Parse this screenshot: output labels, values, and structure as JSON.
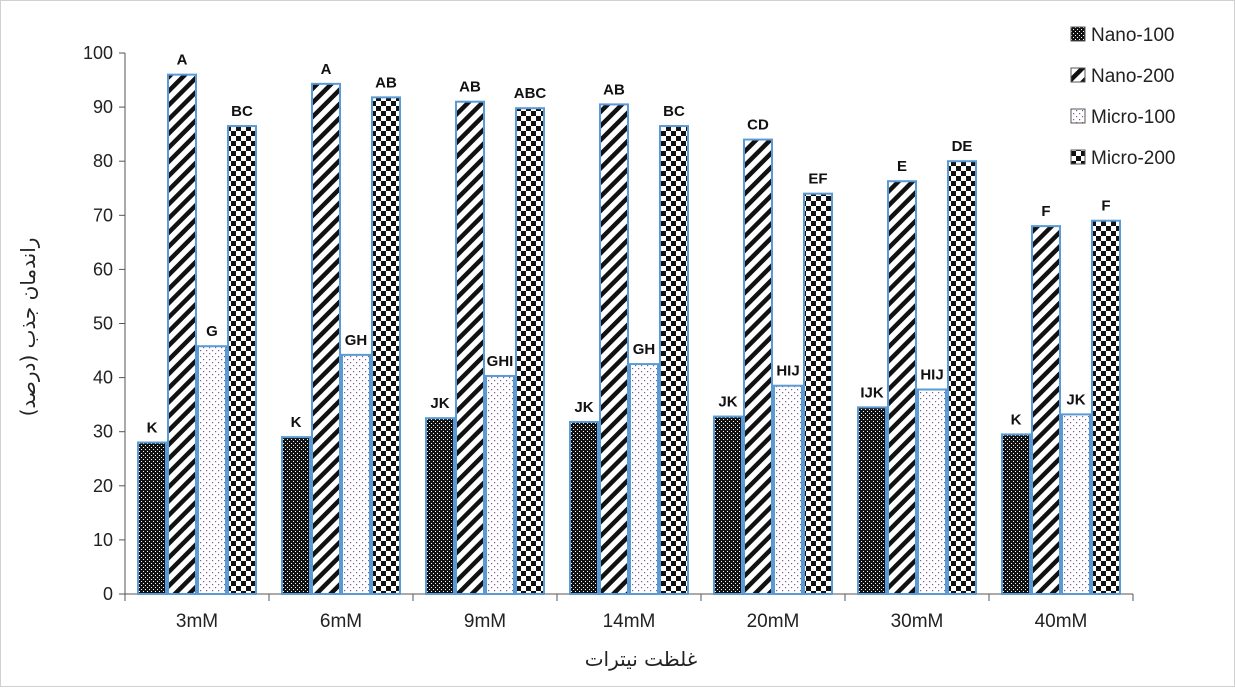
{
  "chart_data": {
    "type": "bar",
    "xlabel": "غلظت نیترات",
    "ylabel": "راندمان جذب (درصد)",
    "ylim": [
      0,
      100
    ],
    "yticks": [
      0,
      10,
      20,
      30,
      40,
      50,
      60,
      70,
      80,
      90,
      100
    ],
    "grid": false,
    "legend_position": "top-right",
    "categories": [
      "3mM",
      "6mM",
      "9mM",
      "14mM",
      "20mM",
      "30mM",
      "40mM"
    ],
    "series": [
      {
        "name": "Nano-100",
        "pattern": "dense-dots-dark",
        "color": "#111111",
        "values": [
          28,
          29,
          32.5,
          31.8,
          32.8,
          34.5,
          29.5
        ],
        "labels": [
          "K",
          "K",
          "JK",
          "JK",
          "JK",
          "IJK",
          "K"
        ]
      },
      {
        "name": "Nano-200",
        "pattern": "diagonal-stripes",
        "color": "#111111",
        "values": [
          96,
          94.3,
          91,
          90.5,
          84,
          76.3,
          68
        ],
        "labels": [
          "A",
          "A",
          "AB",
          "AB",
          "CD",
          "E",
          "F"
        ]
      },
      {
        "name": "Micro-100",
        "pattern": "sparse-dots-purple",
        "color": "#6a4a8a",
        "values": [
          45.8,
          44.2,
          40.3,
          42.5,
          38.5,
          37.8,
          33.2
        ],
        "labels": [
          "G",
          "GH",
          "GHI",
          "GH",
          "HIJ",
          "HIJ",
          "JK"
        ]
      },
      {
        "name": "Micro-200",
        "pattern": "checkerboard",
        "color": "#111111",
        "values": [
          86.5,
          91.8,
          89.8,
          86.5,
          74,
          80,
          69
        ],
        "labels": [
          "BC",
          "AB",
          "ABC",
          "BC",
          "EF",
          "DE",
          "F"
        ]
      }
    ],
    "bar_border_color": "#5b9bd5"
  }
}
